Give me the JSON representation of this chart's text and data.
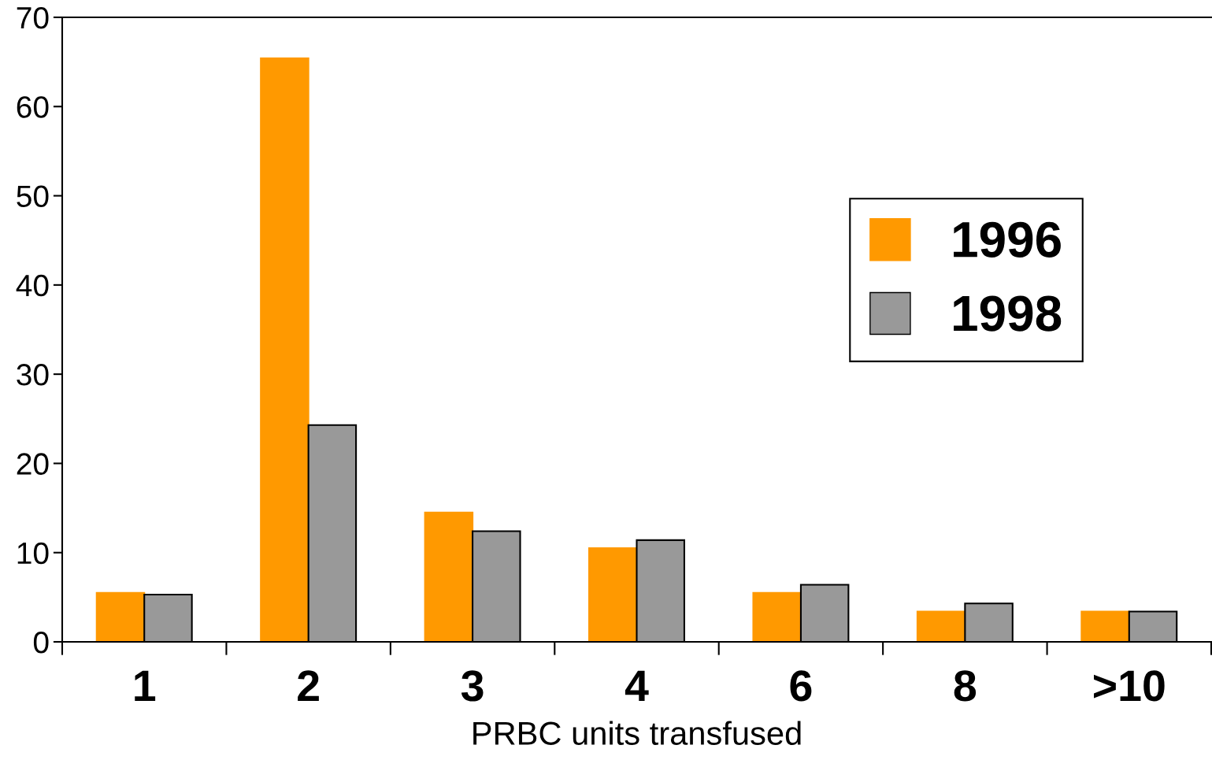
{
  "chart_data": {
    "type": "bar",
    "xlabel": "PRBC units transfused",
    "categories": [
      "1",
      "2",
      "3",
      "4",
      "6",
      "8",
      ">10"
    ],
    "series": [
      {
        "name": "1996",
        "color": "#ff9900",
        "values": [
          5.5,
          65.4,
          14.5,
          10.5,
          5.5,
          3.4,
          3.4
        ]
      },
      {
        "name": "1998",
        "color": "#999999",
        "values": [
          5.3,
          24.3,
          12.4,
          11.4,
          6.4,
          4.3,
          3.4
        ]
      }
    ],
    "ylim": [
      0,
      70
    ],
    "yticks": [
      0,
      10,
      20,
      30,
      40,
      50,
      60,
      70
    ],
    "grid": false,
    "legend": "top right"
  }
}
